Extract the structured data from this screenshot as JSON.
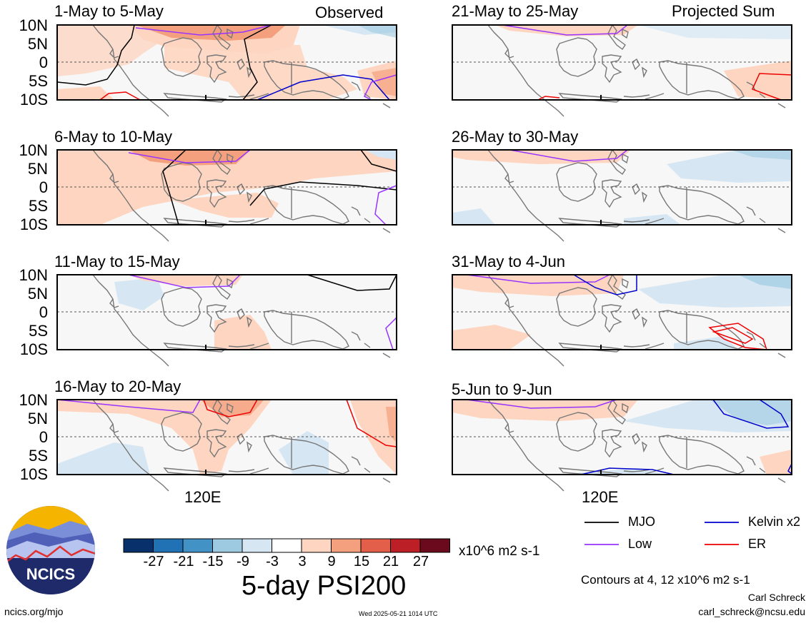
{
  "corner_labels": {
    "left": "Observed",
    "right": "Projected Sum"
  },
  "lat_labels": [
    "10N",
    "5N",
    "0",
    "5S",
    "10S"
  ],
  "lon_label": "120E",
  "panels_left": [
    {
      "title": "1-May to 5-May"
    },
    {
      "title": "6-May to 10-May"
    },
    {
      "title": "11-May to 15-May"
    },
    {
      "title": "16-May to 20-May"
    }
  ],
  "panels_right": [
    {
      "title": "21-May to 25-May"
    },
    {
      "title": "26-May to 30-May"
    },
    {
      "title": "31-May to 4-Jun"
    },
    {
      "title": "5-Jun to 9-Jun"
    }
  ],
  "colorbar": {
    "colors": [
      "#08306b",
      "#2171b5",
      "#4292c6",
      "#9ecae1",
      "#d6e7f3",
      "#ffffff",
      "#fdd5c0",
      "#f4a07e",
      "#e35f4a",
      "#bd1f26",
      "#6b0a1c"
    ],
    "ticks": [
      "-27",
      "-21",
      "-15",
      "-9",
      "-3",
      "3",
      "9",
      "15",
      "21",
      "27"
    ],
    "units": "x10^6 m2 s-1"
  },
  "title": "5-day PSI200",
  "legend": [
    {
      "label": "MJO",
      "color": "#000000"
    },
    {
      "label": "Kelvin x2",
      "color": "#0000cc"
    },
    {
      "label": "Low",
      "color": "#9933ff"
    },
    {
      "label": "ER",
      "color": "#ee0000"
    }
  ],
  "contours_note": "Contours at 4, 12 x10^6 m2 s-1",
  "author": "Carl Schreck",
  "email": "carl_schreck@ncsu.edu",
  "website": "ncics.org/mjo",
  "timestamp": "Wed 2025-05-21 1014 UTC",
  "logo_text": "NCICS"
}
